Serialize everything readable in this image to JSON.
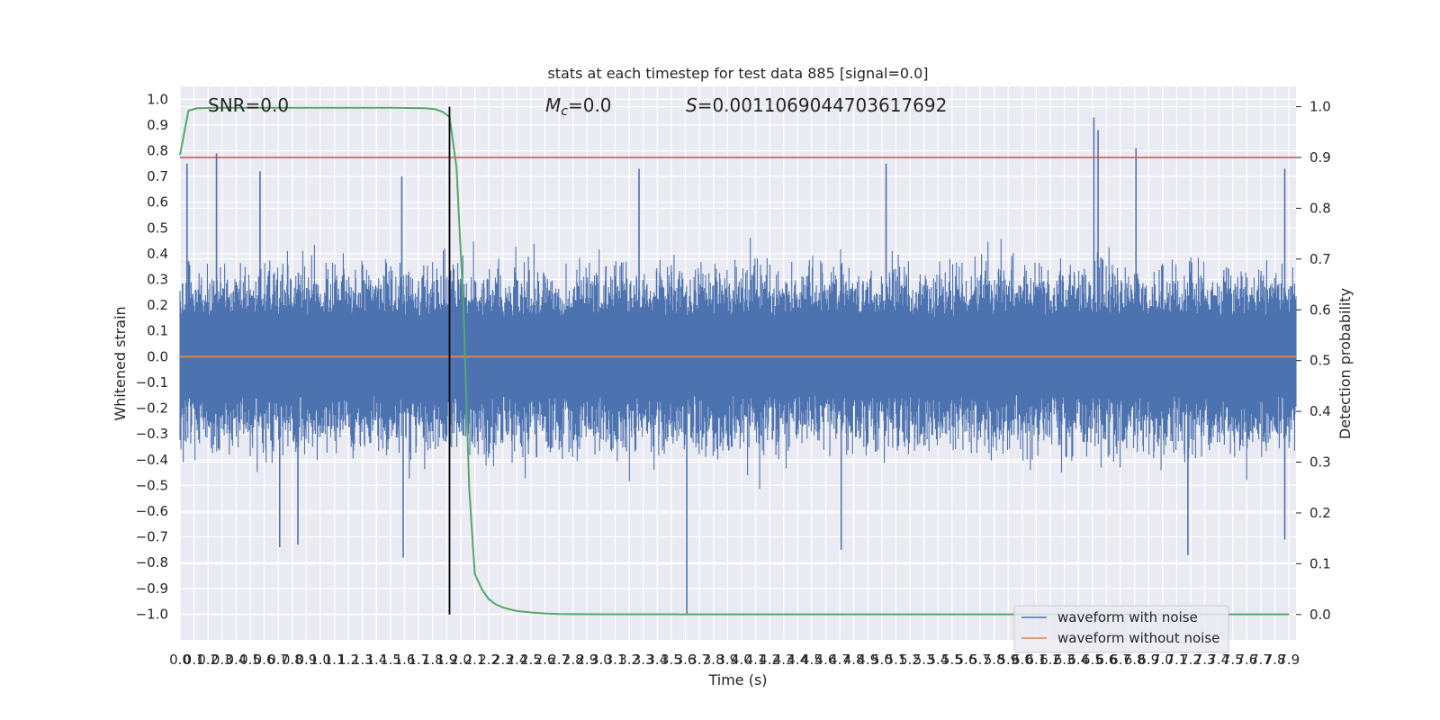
{
  "chart_data": {
    "type": "line",
    "title": "stats at each timestep for test data 885 [signal=0.0]",
    "xlabel": "Time (s)",
    "ylabel_left": "Whitened strain",
    "ylabel_right": "Detection probability",
    "xlim": [
      0.0,
      7.95
    ],
    "ylim_left": [
      -1.1,
      1.05
    ],
    "ylim_right": [
      -0.05,
      1.04
    ],
    "x_ticks": [
      "0.0",
      "0.1",
      "0.2",
      "0.3",
      "0.4",
      "0.5",
      "0.6",
      "0.7",
      "0.8",
      "0.9",
      "1.0",
      "1.1",
      "1.2",
      "1.3",
      "1.4",
      "1.5",
      "1.6",
      "1.7",
      "1.8",
      "1.9",
      "2.0",
      "2.1",
      "2.2",
      "2.3",
      "2.4",
      "2.5",
      "2.6",
      "2.7",
      "2.8",
      "2.9",
      "3.0",
      "3.1",
      "3.2",
      "3.3",
      "3.4",
      "3.5",
      "3.6",
      "3.7",
      "3.8",
      "3.9",
      "4.0",
      "4.1",
      "4.2",
      "4.3",
      "4.4",
      "4.5",
      "4.6",
      "4.7",
      "4.8",
      "4.9",
      "5.0",
      "5.1",
      "5.2",
      "5.3",
      "5.4",
      "5.5",
      "5.6",
      "5.7",
      "5.8",
      "5.9",
      "6.0",
      "6.1",
      "6.2",
      "6.3",
      "6.4",
      "6.5",
      "6.6",
      "6.7",
      "6.8",
      "6.9",
      "7.0",
      "7.1",
      "7.2",
      "7.3",
      "7.4",
      "7.5",
      "7.6",
      "7.7",
      "7.8",
      "7.9"
    ],
    "y_ticks_left": [
      "−1.0",
      "−0.9",
      "−0.8",
      "−0.7",
      "−0.6",
      "−0.5",
      "−0.4",
      "−0.3",
      "−0.2",
      "−0.1",
      "0.0",
      "0.1",
      "0.2",
      "0.3",
      "0.4",
      "0.5",
      "0.6",
      "0.7",
      "0.8",
      "0.9",
      "1.0"
    ],
    "y_ticks_right": [
      "0.0",
      "0.1",
      "0.2",
      "0.3",
      "0.4",
      "0.5",
      "0.6",
      "0.7",
      "0.8",
      "0.9",
      "1.0"
    ],
    "annotations": {
      "snr": "SNR=0.0",
      "mc": "M",
      "mc_sub": "c",
      "mc_value": "=0.0",
      "s": "S",
      "s_value": "=0.0011069044703617692"
    },
    "threshold_right": 0.9,
    "marker_x": 1.92,
    "grid": true,
    "legend_position": "bottom-right",
    "series": [
      {
        "name": "waveform with noise",
        "color": "#4c72b0",
        "axis": "left",
        "typical_envelope": [
          -0.42,
          0.44
        ],
        "spikes": [
          {
            "x": 0.05,
            "y": 0.75
          },
          {
            "x": 0.26,
            "y": 0.79
          },
          {
            "x": 0.57,
            "y": 0.72
          },
          {
            "x": 1.58,
            "y": 0.7
          },
          {
            "x": 3.27,
            "y": 0.73
          },
          {
            "x": 5.03,
            "y": 0.75
          },
          {
            "x": 6.51,
            "y": 0.93
          },
          {
            "x": 6.54,
            "y": 0.88
          },
          {
            "x": 6.81,
            "y": 0.81
          },
          {
            "x": 7.87,
            "y": 0.73
          },
          {
            "x": 0.71,
            "y": -0.74
          },
          {
            "x": 0.84,
            "y": -0.73
          },
          {
            "x": 1.59,
            "y": -0.78
          },
          {
            "x": 3.61,
            "y": -1.0
          },
          {
            "x": 4.71,
            "y": -0.75
          },
          {
            "x": 7.18,
            "y": -0.77
          },
          {
            "x": 7.87,
            "y": -0.71
          }
        ]
      },
      {
        "name": "waveform without noise",
        "color": "#dd8452",
        "axis": "left",
        "x": [
          0.0,
          7.95
        ],
        "y": [
          0.0,
          0.0
        ]
      },
      {
        "name": "detection probability",
        "color": "#55a868",
        "axis": "right",
        "x": [
          0.0,
          0.06,
          0.12,
          0.25,
          0.5,
          1.0,
          1.5,
          1.75,
          1.82,
          1.87,
          1.92,
          1.97,
          2.02,
          2.06,
          2.1,
          2.15,
          2.2,
          2.25,
          2.3,
          2.35,
          2.4,
          2.5,
          2.6,
          2.7,
          2.8,
          3.0,
          3.5,
          4.0,
          5.0,
          6.0,
          7.0,
          7.9
        ],
        "y": [
          0.905,
          0.992,
          0.997,
          0.998,
          0.998,
          0.998,
          0.998,
          0.997,
          0.995,
          0.99,
          0.98,
          0.88,
          0.6,
          0.25,
          0.08,
          0.05,
          0.03,
          0.02,
          0.014,
          0.01,
          0.007,
          0.004,
          0.002,
          0.001,
          0.0008,
          0.0005,
          0.0004,
          0.0003,
          0.0003,
          0.0003,
          0.0003,
          0.0003
        ]
      }
    ]
  }
}
